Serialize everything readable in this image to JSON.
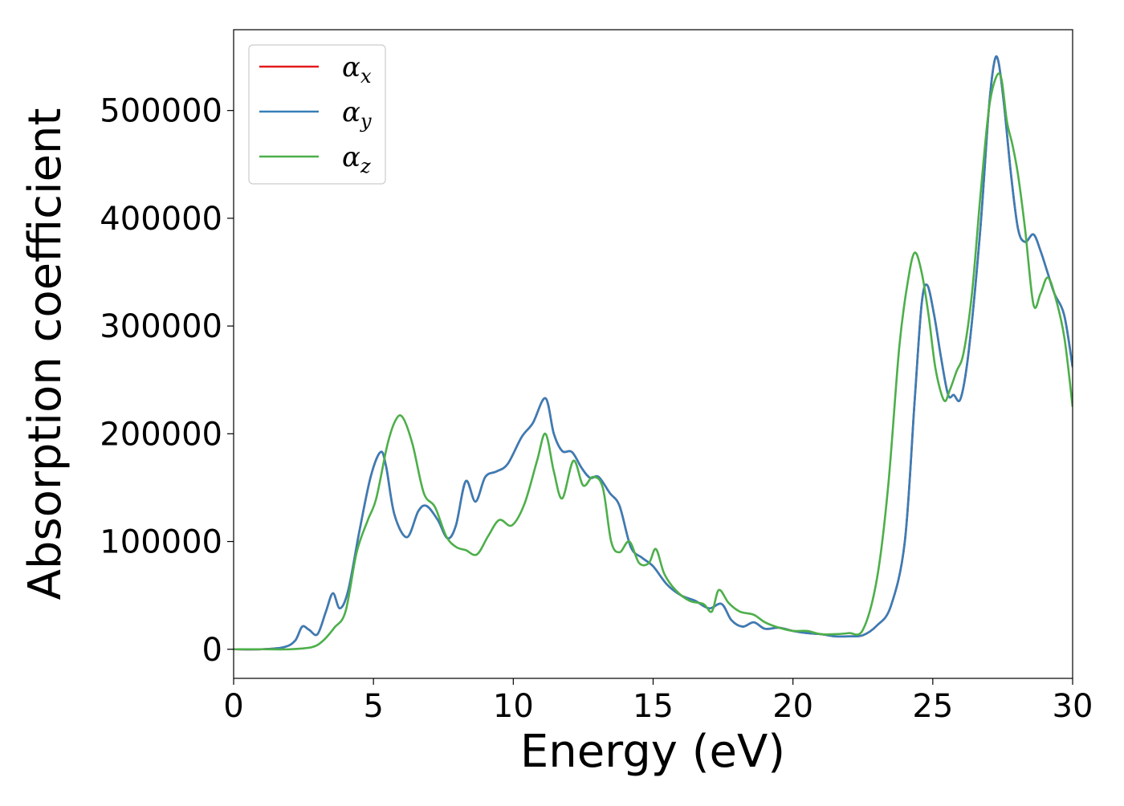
{
  "chart_data": {
    "type": "line",
    "title": "",
    "xlabel": "Energy (eV)",
    "ylabel": "Absorption coefficient",
    "xlim": [
      0,
      30
    ],
    "ylim": [
      -27000,
      575000
    ],
    "xticks": [
      0,
      5,
      10,
      15,
      20,
      25,
      30
    ],
    "xtick_labels": [
      "0",
      "5",
      "10",
      "15",
      "20",
      "25",
      "30"
    ],
    "yticks": [
      0,
      100000,
      200000,
      300000,
      400000,
      500000
    ],
    "ytick_labels": [
      "0",
      "100000",
      "200000",
      "300000",
      "400000",
      "500000"
    ],
    "grid": false,
    "legend_position": "upper-left",
    "series": [
      {
        "name": "αx",
        "legend_base": "α",
        "legend_sub": "x",
        "color": "#e41a1c",
        "x": [
          0,
          1,
          1.8,
          2.2,
          2.45,
          2.7,
          3.0,
          3.3,
          3.55,
          3.8,
          4.1,
          4.5,
          4.9,
          5.25,
          5.45,
          5.75,
          6.2,
          6.6,
          6.9,
          7.3,
          7.65,
          7.95,
          8.3,
          8.65,
          9.0,
          9.4,
          9.8,
          10.3,
          10.7,
          11.15,
          11.45,
          11.75,
          12.1,
          12.45,
          12.75,
          13.05,
          13.45,
          13.8,
          14.2,
          14.6,
          15.0,
          15.5,
          16.0,
          16.5,
          17.0,
          17.45,
          17.8,
          18.2,
          18.6,
          19.0,
          19.5,
          20.0,
          20.5,
          21.0,
          21.5,
          22.0,
          22.5,
          23.0,
          23.5,
          24.0,
          24.35,
          24.6,
          24.8,
          25.05,
          25.3,
          25.55,
          25.75,
          26.0,
          26.3,
          26.7,
          27.0,
          27.2,
          27.35,
          27.55,
          27.8,
          28.05,
          28.3,
          28.6,
          28.85,
          29.1,
          29.35,
          29.7,
          30.0
        ],
        "y": [
          0,
          0,
          2000,
          8000,
          21000,
          18000,
          14000,
          35000,
          52000,
          38000,
          55000,
          110000,
          160000,
          183000,
          170000,
          125000,
          104000,
          128000,
          133000,
          120000,
          103000,
          115000,
          156000,
          137000,
          160000,
          165000,
          172000,
          197000,
          210000,
          233000,
          200000,
          184000,
          183000,
          168000,
          159000,
          160000,
          145000,
          133000,
          95000,
          85000,
          77000,
          60000,
          50000,
          45000,
          38000,
          42000,
          27000,
          21000,
          25000,
          19000,
          20000,
          17000,
          15000,
          14000,
          12000,
          12000,
          13000,
          22000,
          40000,
          100000,
          230000,
          320000,
          338000,
          310000,
          270000,
          236000,
          236000,
          233000,
          280000,
          390000,
          500000,
          545000,
          545000,
          505000,
          440000,
          390000,
          378000,
          385000,
          370000,
          350000,
          330000,
          310000,
          262000
        ]
      },
      {
        "name": "αy",
        "legend_base": "α",
        "legend_sub": "y",
        "color": "#377eb8",
        "x": [
          0,
          1,
          1.8,
          2.2,
          2.45,
          2.7,
          3.0,
          3.3,
          3.55,
          3.8,
          4.1,
          4.5,
          4.9,
          5.25,
          5.45,
          5.75,
          6.2,
          6.6,
          6.9,
          7.3,
          7.65,
          7.95,
          8.3,
          8.65,
          9.0,
          9.4,
          9.8,
          10.3,
          10.7,
          11.15,
          11.45,
          11.75,
          12.1,
          12.45,
          12.75,
          13.05,
          13.45,
          13.8,
          14.2,
          14.6,
          15.0,
          15.5,
          16.0,
          16.5,
          17.0,
          17.45,
          17.8,
          18.2,
          18.6,
          19.0,
          19.5,
          20.0,
          20.5,
          21.0,
          21.5,
          22.0,
          22.5,
          23.0,
          23.5,
          24.0,
          24.35,
          24.6,
          24.8,
          25.05,
          25.3,
          25.55,
          25.75,
          26.0,
          26.3,
          26.7,
          27.0,
          27.2,
          27.35,
          27.55,
          27.8,
          28.05,
          28.3,
          28.6,
          28.85,
          29.1,
          29.35,
          29.7,
          30.0
        ],
        "y": [
          0,
          0,
          2000,
          8000,
          21000,
          18000,
          14000,
          35000,
          52000,
          38000,
          55000,
          110000,
          160000,
          183000,
          170000,
          125000,
          104000,
          128000,
          133000,
          120000,
          103000,
          115000,
          156000,
          137000,
          160000,
          165000,
          172000,
          197000,
          210000,
          233000,
          200000,
          184000,
          183000,
          168000,
          159000,
          160000,
          145000,
          133000,
          95000,
          85000,
          77000,
          60000,
          50000,
          45000,
          38000,
          42000,
          27000,
          21000,
          25000,
          19000,
          20000,
          17000,
          15000,
          14000,
          12000,
          12000,
          13000,
          22000,
          40000,
          100000,
          230000,
          320000,
          338000,
          310000,
          270000,
          236000,
          236000,
          233000,
          280000,
          390000,
          500000,
          545000,
          545000,
          505000,
          440000,
          390000,
          378000,
          385000,
          370000,
          350000,
          330000,
          310000,
          262000
        ]
      },
      {
        "name": "αz",
        "legend_base": "α",
        "legend_sub": "z",
        "color": "#4daf4a",
        "x": [
          0,
          1,
          2,
          2.8,
          3.2,
          3.6,
          4.0,
          4.4,
          4.8,
          5.1,
          5.5,
          5.8,
          6.05,
          6.4,
          6.8,
          7.2,
          7.6,
          7.95,
          8.3,
          8.7,
          9.1,
          9.5,
          9.95,
          10.4,
          10.85,
          11.15,
          11.45,
          11.75,
          12.15,
          12.5,
          12.85,
          13.2,
          13.5,
          13.8,
          14.15,
          14.5,
          14.85,
          15.1,
          15.4,
          15.8,
          16.3,
          16.8,
          17.1,
          17.35,
          17.7,
          18.1,
          18.6,
          19.0,
          19.5,
          20.0,
          20.5,
          21.0,
          21.5,
          22.0,
          22.5,
          23.0,
          23.4,
          23.8,
          24.1,
          24.35,
          24.6,
          24.85,
          25.1,
          25.4,
          25.6,
          25.85,
          26.1,
          26.4,
          26.7,
          27.0,
          27.25,
          27.45,
          27.65,
          27.85,
          28.05,
          28.3,
          28.6,
          28.85,
          29.1,
          29.35,
          29.7,
          30.0
        ],
        "y": [
          0,
          0,
          0,
          2000,
          8000,
          20000,
          35000,
          90000,
          120000,
          140000,
          190000,
          213000,
          215000,
          190000,
          145000,
          132000,
          105000,
          95000,
          92000,
          88000,
          105000,
          120000,
          115000,
          135000,
          175000,
          200000,
          165000,
          140000,
          175000,
          152000,
          160000,
          150000,
          100000,
          90000,
          100000,
          80000,
          80000,
          93000,
          70000,
          55000,
          45000,
          42000,
          35000,
          55000,
          43000,
          35000,
          32000,
          25000,
          20000,
          17000,
          17000,
          14000,
          14000,
          15000,
          18000,
          65000,
          150000,
          280000,
          340000,
          368000,
          350000,
          310000,
          260000,
          231000,
          240000,
          258000,
          275000,
          330000,
          420000,
          500000,
          530000,
          530000,
          490000,
          468000,
          440000,
          390000,
          320000,
          330000,
          345000,
          330000,
          290000,
          225000
        ]
      }
    ]
  }
}
